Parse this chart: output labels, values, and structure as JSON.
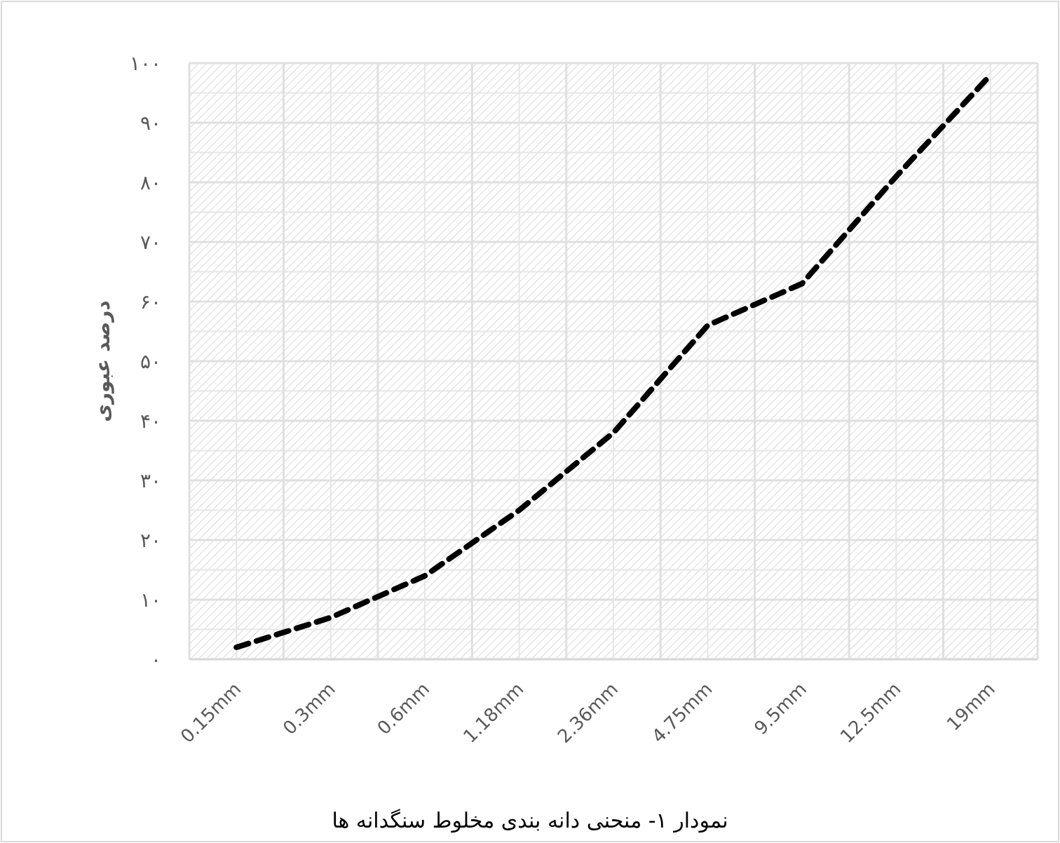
{
  "chart_data": {
    "type": "line",
    "ylabel": "درصد عبوری",
    "annotations": [
      "نمودار ۱- منحنی دانه بندی مخلوط سنگدانه ها"
    ],
    "categories": [
      "0.15mm",
      "0.3mm",
      "0.6mm",
      "1.18mm",
      "2.36mm",
      "4.75mm",
      "9.5mm",
      "12.5mm",
      "19mm"
    ],
    "series": [
      {
        "color": "#000000",
        "values": [
          2,
          7,
          14,
          25,
          38,
          56,
          63,
          81,
          98
        ]
      }
    ],
    "ylim": [
      0,
      100
    ],
    "yticks": [
      {
        "value": 0,
        "label": "۰"
      },
      {
        "value": 10,
        "label": "۱۰"
      },
      {
        "value": 20,
        "label": "۲۰"
      },
      {
        "value": 30,
        "label": "۳۰"
      },
      {
        "value": 40,
        "label": "۴۰"
      },
      {
        "value": 50,
        "label": "۵۰"
      },
      {
        "value": 60,
        "label": "۶۰"
      },
      {
        "value": 70,
        "label": "۷۰"
      },
      {
        "value": 80,
        "label": "۸۰"
      },
      {
        "value": 90,
        "label": "۹۰"
      },
      {
        "value": 100,
        "label": "۱۰۰"
      }
    ],
    "grid": true,
    "marker": "none",
    "line_style": "dashed"
  }
}
